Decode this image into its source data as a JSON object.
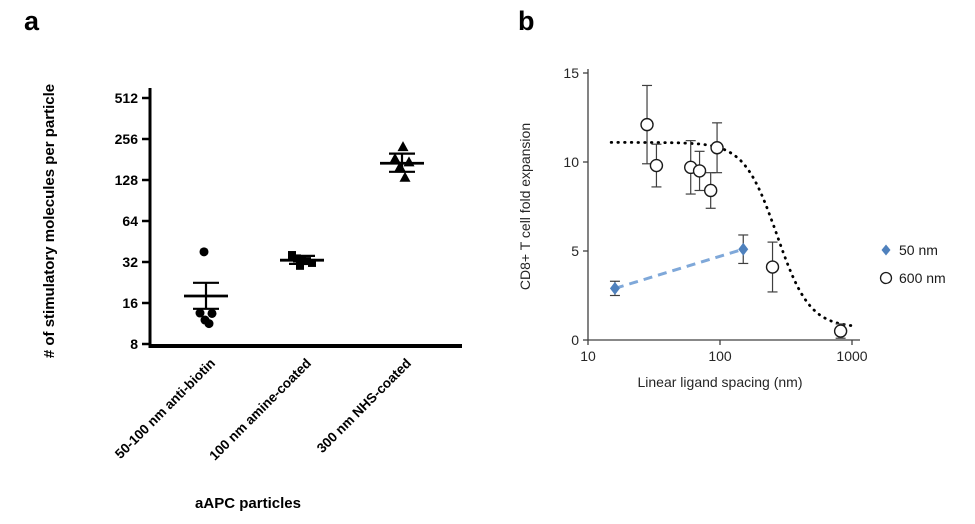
{
  "figure": {
    "panel_a_label": "a",
    "panel_b_label": "b"
  },
  "chart_data": [
    {
      "id": "panel-a",
      "type": "scatter",
      "title": "",
      "xlabel": "aAPC particles",
      "ylabel": "# of stimulatory molecules per particle",
      "y_scale": "log2",
      "ylim": [
        8,
        512
      ],
      "y_ticks": [
        8,
        16,
        32,
        64,
        128,
        256,
        512
      ],
      "categories": [
        "50-100 nm anti-biotin",
        "100 nm amine-coated",
        "300 nm NHS-coated"
      ],
      "marker_color": "#000000",
      "series": [
        {
          "category": "50-100 nm anti-biotin",
          "marker": "circle",
          "values": [
            38,
            13.5,
            13.4,
            12,
            11.3
          ],
          "mean": 18,
          "sem_low": 14.5,
          "sem_high": 22.5
        },
        {
          "category": "100 nm amine-coated",
          "marker": "square",
          "values": [
            36,
            34,
            33,
            32.5,
            31.5,
            30
          ],
          "mean": 33,
          "sem_low": 31,
          "sem_high": 35.5
        },
        {
          "category": "300 nm NHS-coated",
          "marker": "triangle",
          "values": [
            225,
            184,
            174,
            160,
            134
          ],
          "mean": 170,
          "sem_low": 147,
          "sem_high": 200
        }
      ]
    },
    {
      "id": "panel-b",
      "type": "scatter",
      "title": "",
      "xlabel": "Linear ligand spacing (nm)",
      "ylabel": "CD8+ T cell fold expansion",
      "x_scale": "log10",
      "xlim": [
        10,
        1000
      ],
      "x_ticks": [
        10,
        100,
        1000
      ],
      "ylim": [
        0,
        15
      ],
      "y_ticks": [
        0,
        5,
        10,
        15
      ],
      "series": [
        {
          "name": "50 nm",
          "marker": "diamond",
          "color": "#4f81bd",
          "line": "dashed",
          "line_color": "#7fa8d9",
          "points": [
            {
              "x": 16,
              "y": 2.9,
              "err": 0.4
            },
            {
              "x": 150,
              "y": 5.1,
              "err": 0.8
            }
          ]
        },
        {
          "name": "600 nm",
          "marker": "open-circle",
          "color": "#000000",
          "points": [
            {
              "x": 28,
              "y": 12.1,
              "err": 2.2
            },
            {
              "x": 33,
              "y": 9.8,
              "err": 1.2
            },
            {
              "x": 60,
              "y": 9.7,
              "err": 1.5
            },
            {
              "x": 70,
              "y": 9.5,
              "err": 1.1
            },
            {
              "x": 85,
              "y": 8.4,
              "err": 1.0
            },
            {
              "x": 95,
              "y": 10.8,
              "err": 1.4
            },
            {
              "x": 250,
              "y": 4.1,
              "err": 1.4
            },
            {
              "x": 820,
              "y": 0.5,
              "err": 0.4
            }
          ]
        }
      ],
      "trend_curve": {
        "style": "dotted",
        "color": "#000000",
        "base": 0.7,
        "amplitude": 10.4,
        "midpoint": 270,
        "hill": 3.5
      },
      "legend": [
        "50 nm",
        "600 nm"
      ],
      "legend_position": "right"
    }
  ]
}
